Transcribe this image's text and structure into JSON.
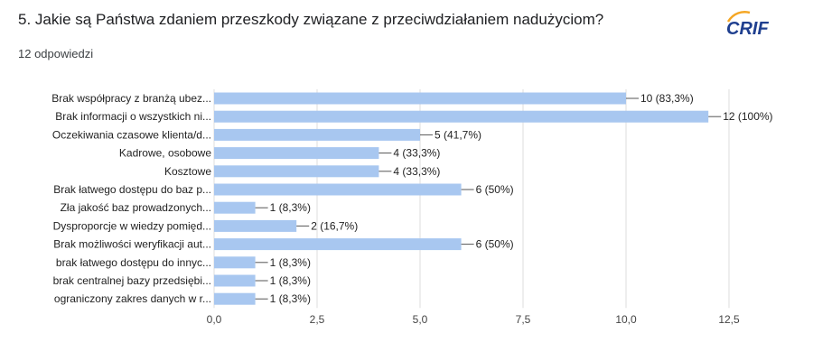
{
  "header": {
    "question": "5. Jakie są Państwa zdaniem przeszkody związane z przeciwdziałaniem nadużyciom?",
    "responses": "12 odpowiedzi",
    "logo_text": "CRIF"
  },
  "colors": {
    "bar": "#a8c7f0",
    "logo": "#1f3f8f",
    "logo_accent": "#f5a623",
    "grid": "#dddddd"
  },
  "chart_data": {
    "type": "bar",
    "orientation": "horizontal",
    "categories": [
      "Brak współpracy z branżą ubez...",
      "Brak informacji o wszystkich ni...",
      "Oczekiwania czasowe klienta/d...",
      "Kadrowe, osobowe",
      "Kosztowe",
      "Brak łatwego dostępu do baz p...",
      "Zła jakość baz prowadzonych...",
      "Dysproporcje w wiedzy pomięd...",
      "Brak możliwości weryfikacji aut...",
      "brak łatwego dostępu do innyc...",
      "brak centralnej bazy przedsiębi...",
      "ograniczony zakres danych w r..."
    ],
    "values": [
      10,
      12,
      5,
      4,
      4,
      6,
      1,
      2,
      6,
      1,
      1,
      1
    ],
    "value_labels": [
      "10 (83,3%)",
      "12 (100%)",
      "5 (41,7%)",
      "4 (33,3%)",
      "4 (33,3%)",
      "6 (50%)",
      "1 (8,3%)",
      "2 (16,7%)",
      "6 (50%)",
      "1 (8,3%)",
      "1 (8,3%)",
      "1 (8,3%)"
    ],
    "xlim": [
      0,
      12.5
    ],
    "xticks": [
      0,
      2.5,
      5,
      7.5,
      10,
      12.5
    ],
    "xtick_labels": [
      "0,0",
      "2,5",
      "5,0",
      "7,5",
      "10,0",
      "12,5"
    ],
    "grid": true
  }
}
